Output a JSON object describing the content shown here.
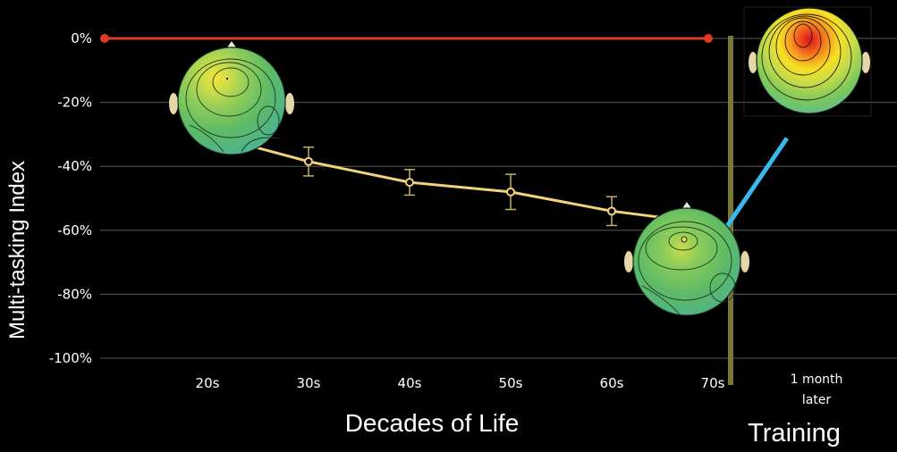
{
  "chart_data": {
    "type": "line",
    "ylabel": "Multi-tasking Index",
    "xlabel": "Decades of Life",
    "training_label": "Training",
    "training_tick": [
      "1 month",
      "later"
    ],
    "categories": [
      "20s",
      "30s",
      "40s",
      "50s",
      "60s",
      "70s"
    ],
    "yticks": [
      "0%",
      "-20%",
      "-40%",
      "-60%",
      "-80%",
      "-100%"
    ],
    "ylim": [
      -100,
      0
    ],
    "grid": true,
    "reference_line": {
      "value": 0,
      "color": "#e03a24"
    },
    "series": [
      {
        "color": "#f2d27a",
        "values": [
          -30,
          -38.5,
          -45,
          -48,
          -54,
          -58
        ],
        "error": [
          null,
          4.5,
          4,
          5.5,
          4.5,
          null
        ]
      }
    ],
    "training_point": {
      "from": -57,
      "to": -20,
      "color": "#3bb8ec"
    },
    "divider_color": "#7a7636"
  }
}
